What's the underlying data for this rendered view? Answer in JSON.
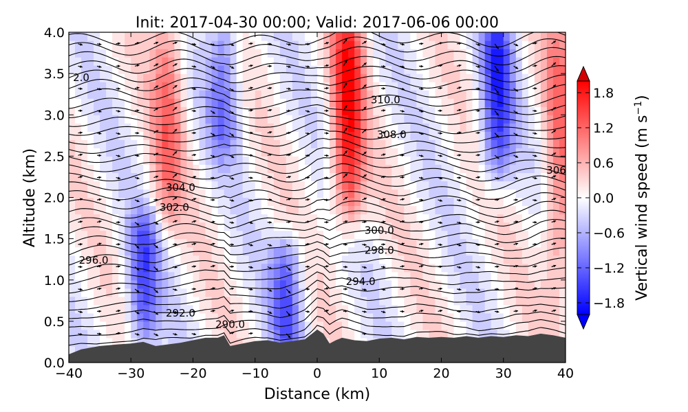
{
  "chart_data": {
    "type": "heatmap",
    "title": "Init: 2017-04-30 00:00; Valid: 2017-06-06 00:00",
    "xlabel": "Distance (km)",
    "ylabel": "Altitude (km)",
    "xlim": [
      -40,
      40
    ],
    "ylim": [
      0.0,
      4.0
    ],
    "x_ticks": [
      "−40",
      "−30",
      "−20",
      "−10",
      "0",
      "10",
      "20",
      "30",
      "40"
    ],
    "x_tick_values": [
      -40,
      -30,
      -20,
      -10,
      0,
      10,
      20,
      30,
      40
    ],
    "y_ticks": [
      "0.0",
      "0.5",
      "1.0",
      "1.5",
      "2.0",
      "2.5",
      "3.0",
      "3.5",
      "4.0"
    ],
    "y_tick_values": [
      0.0,
      0.5,
      1.0,
      1.5,
      2.0,
      2.5,
      3.0,
      3.5,
      4.0
    ],
    "colorbar": {
      "label": "Vertical wind speed (m s",
      "label_sup": "−1",
      "label_close": ")",
      "min": -2.0,
      "max": 2.0,
      "ticks": [
        "1.8",
        "1.2",
        "0.6",
        "0.0",
        "−0.6",
        "−1.2",
        "−1.8"
      ],
      "tick_values": [
        1.8,
        1.2,
        0.6,
        0.0,
        -0.6,
        -1.2,
        -1.8
      ],
      "colors": {
        "neg": "#0000ff",
        "zero": "#ffffff",
        "pos": "#ff0000"
      }
    },
    "vertical_wind_features": [
      {
        "x": -24,
        "z_min": 2.0,
        "z_max": 4.0,
        "w": 1.0
      },
      {
        "x": -28,
        "z_min": 0.5,
        "z_max": 1.5,
        "w": -1.3
      },
      {
        "x": -15,
        "z_min": 2.8,
        "z_max": 4.0,
        "w": -1.0
      },
      {
        "x": -5,
        "z_min": 0.4,
        "z_max": 1.2,
        "w": -1.2
      },
      {
        "x": 5,
        "z_min": 2.0,
        "z_max": 4.0,
        "w": 1.8
      },
      {
        "x": 29,
        "z_min": 2.5,
        "z_max": 4.0,
        "w": -1.5
      },
      {
        "x": 39,
        "z_min": 1.0,
        "z_max": 4.0,
        "w": 1.0
      }
    ],
    "terrain": {
      "x": [
        -40,
        -38,
        -35,
        -32,
        -30,
        -28,
        -26,
        -24,
        -22,
        -20,
        -18,
        -16,
        -15,
        -14,
        -12,
        -10,
        -8,
        -6,
        -4,
        -2,
        -1,
        0,
        1,
        2,
        3,
        4,
        6,
        8,
        10,
        12,
        14,
        16,
        18,
        20,
        22,
        24,
        26,
        28,
        30,
        32,
        34,
        36,
        38,
        40
      ],
      "z": [
        0.1,
        0.16,
        0.2,
        0.22,
        0.23,
        0.25,
        0.2,
        0.22,
        0.24,
        0.27,
        0.3,
        0.3,
        0.33,
        0.2,
        0.23,
        0.26,
        0.27,
        0.24,
        0.26,
        0.28,
        0.34,
        0.4,
        0.35,
        0.23,
        0.27,
        0.3,
        0.27,
        0.26,
        0.29,
        0.3,
        0.28,
        0.31,
        0.3,
        0.31,
        0.3,
        0.32,
        0.3,
        0.32,
        0.31,
        0.33,
        0.32,
        0.35,
        0.33,
        0.3
      ],
      "fill": "#444444"
    },
    "contour_labels": [
      {
        "text": "2.0",
        "x": -38,
        "z": 3.45
      },
      {
        "text": "310.0",
        "x": 11,
        "z": 3.18
      },
      {
        "text": "308.0",
        "x": 12,
        "z": 2.76
      },
      {
        "text": "306",
        "x": 38.5,
        "z": 2.33
      },
      {
        "text": "304.0",
        "x": -22,
        "z": 2.12
      },
      {
        "text": "302.0",
        "x": -23,
        "z": 1.88
      },
      {
        "text": "300.0",
        "x": 10,
        "z": 1.6
      },
      {
        "text": "298.0",
        "x": 10,
        "z": 1.36
      },
      {
        "text": "296.0",
        "x": -36,
        "z": 1.24
      },
      {
        "text": "294.0",
        "x": 7,
        "z": 0.98
      },
      {
        "text": "292.0",
        "x": -22,
        "z": 0.6
      },
      {
        "text": "290.0",
        "x": -14,
        "z": 0.46
      }
    ],
    "arrows_present": true
  }
}
